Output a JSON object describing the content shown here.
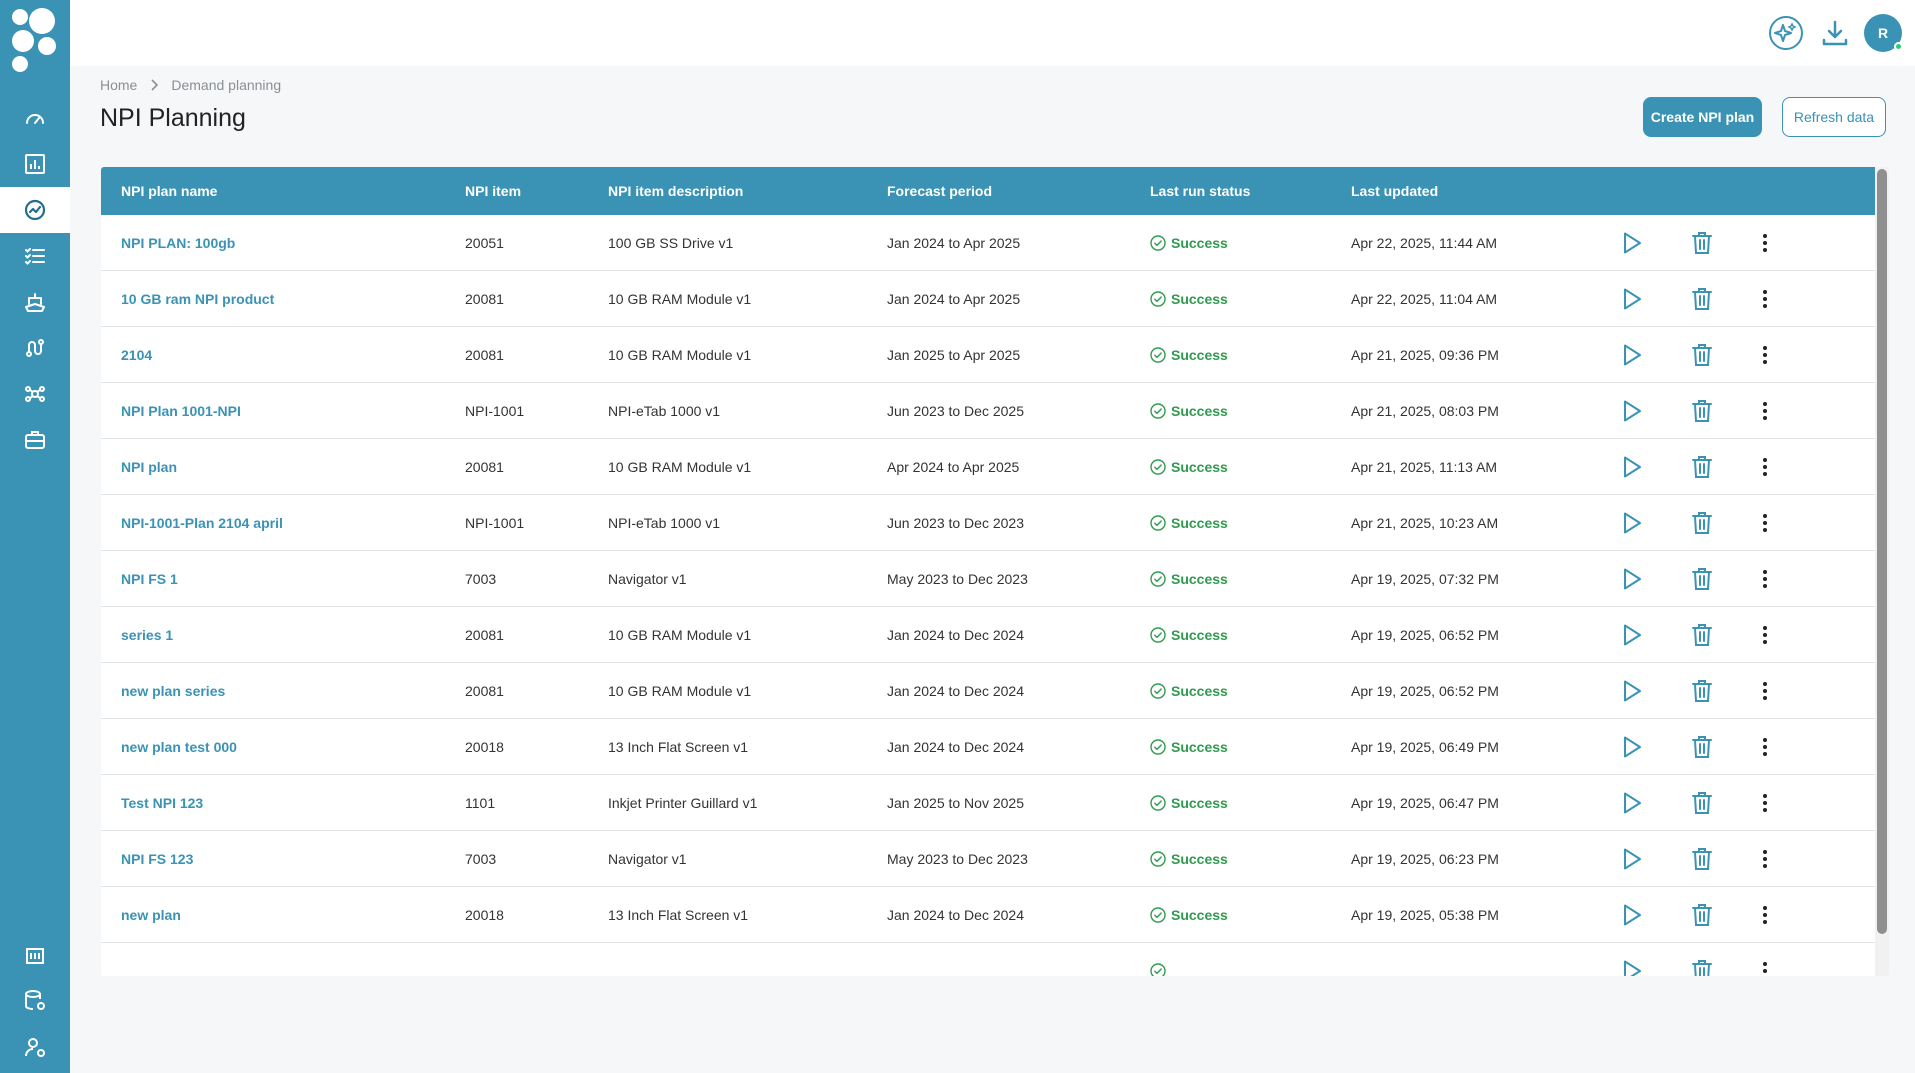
{
  "app": {
    "brand_color": "#3a93b4",
    "success_color": "#2e9b4e"
  },
  "user": {
    "initial": "R"
  },
  "breadcrumb": {
    "home": "Home",
    "current": "Demand planning"
  },
  "page": {
    "title": "NPI Planning"
  },
  "actions": {
    "create": "Create NPI plan",
    "refresh": "Refresh data"
  },
  "sidebar": {
    "items": [
      {
        "icon": "gauge-icon"
      },
      {
        "icon": "bar-chart-icon"
      },
      {
        "icon": "trend-chart-icon",
        "active": true
      },
      {
        "icon": "checklist-icon"
      },
      {
        "icon": "ship-icon"
      },
      {
        "icon": "route-icon"
      },
      {
        "icon": "network-icon"
      },
      {
        "icon": "briefcase-icon"
      },
      {
        "icon": "building-icon"
      },
      {
        "icon": "database-settings-icon"
      },
      {
        "icon": "user-settings-icon"
      }
    ]
  },
  "table": {
    "columns": [
      "NPI plan name",
      "NPI item",
      "NPI item description",
      "Forecast period",
      "Last run status",
      "Last updated"
    ],
    "rows": [
      {
        "name": "NPI PLAN: 100gb",
        "item": "20051",
        "desc": "100 GB SS Drive v1",
        "period": "Jan 2024 to Apr 2025",
        "status": "Success",
        "updated": "Apr 22, 2025, 11:44 AM"
      },
      {
        "name": "10 GB ram NPI product",
        "item": "20081",
        "desc": "10 GB RAM Module v1",
        "period": "Jan 2024 to Apr 2025",
        "status": "Success",
        "updated": "Apr 22, 2025, 11:04 AM"
      },
      {
        "name": "2104",
        "item": "20081",
        "desc": "10 GB RAM Module v1",
        "period": "Jan 2025 to Apr 2025",
        "status": "Success",
        "updated": "Apr 21, 2025, 09:36 PM"
      },
      {
        "name": "NPI Plan 1001-NPI",
        "item": "NPI-1001",
        "desc": "NPI-eTab 1000 v1",
        "period": "Jun 2023 to Dec 2025",
        "status": "Success",
        "updated": "Apr 21, 2025, 08:03 PM"
      },
      {
        "name": "NPI plan",
        "item": "20081",
        "desc": "10 GB RAM Module v1",
        "period": "Apr 2024 to Apr 2025",
        "status": "Success",
        "updated": "Apr 21, 2025, 11:13 AM"
      },
      {
        "name": "NPI-1001-Plan 2104 april",
        "item": "NPI-1001",
        "desc": "NPI-eTab 1000 v1",
        "period": "Jun 2023 to Dec 2023",
        "status": "Success",
        "updated": "Apr 21, 2025, 10:23 AM"
      },
      {
        "name": "NPI FS 1",
        "item": "7003",
        "desc": "Navigator v1",
        "period": "May 2023 to Dec 2023",
        "status": "Success",
        "updated": "Apr 19, 2025, 07:32 PM"
      },
      {
        "name": "series 1",
        "item": "20081",
        "desc": "10 GB RAM Module v1",
        "period": "Jan 2024 to Dec 2024",
        "status": "Success",
        "updated": "Apr 19, 2025, 06:52 PM"
      },
      {
        "name": "new plan series",
        "item": "20081",
        "desc": "10 GB RAM Module v1",
        "period": "Jan 2024 to Dec 2024",
        "status": "Success",
        "updated": "Apr 19, 2025, 06:52 PM"
      },
      {
        "name": "new plan test 000",
        "item": "20018",
        "desc": "13 Inch Flat Screen v1",
        "period": "Jan 2024 to Dec 2024",
        "status": "Success",
        "updated": "Apr 19, 2025, 06:49 PM"
      },
      {
        "name": "Test NPI 123",
        "item": "1101",
        "desc": "Inkjet Printer Guillard v1",
        "period": "Jan 2025 to Nov 2025",
        "status": "Success",
        "updated": "Apr 19, 2025, 06:47 PM"
      },
      {
        "name": "NPI FS 123",
        "item": "7003",
        "desc": "Navigator v1",
        "period": "May 2023 to Dec 2023",
        "status": "Success",
        "updated": "Apr 19, 2025, 06:23 PM"
      },
      {
        "name": "new plan",
        "item": "20018",
        "desc": "13 Inch Flat Screen v1",
        "period": "Jan 2024 to Dec 2024",
        "status": "Success",
        "updated": "Apr 19, 2025, 05:38 PM"
      },
      {
        "name": "",
        "item": "",
        "desc": "",
        "period": "",
        "status": "",
        "updated": ""
      }
    ]
  }
}
